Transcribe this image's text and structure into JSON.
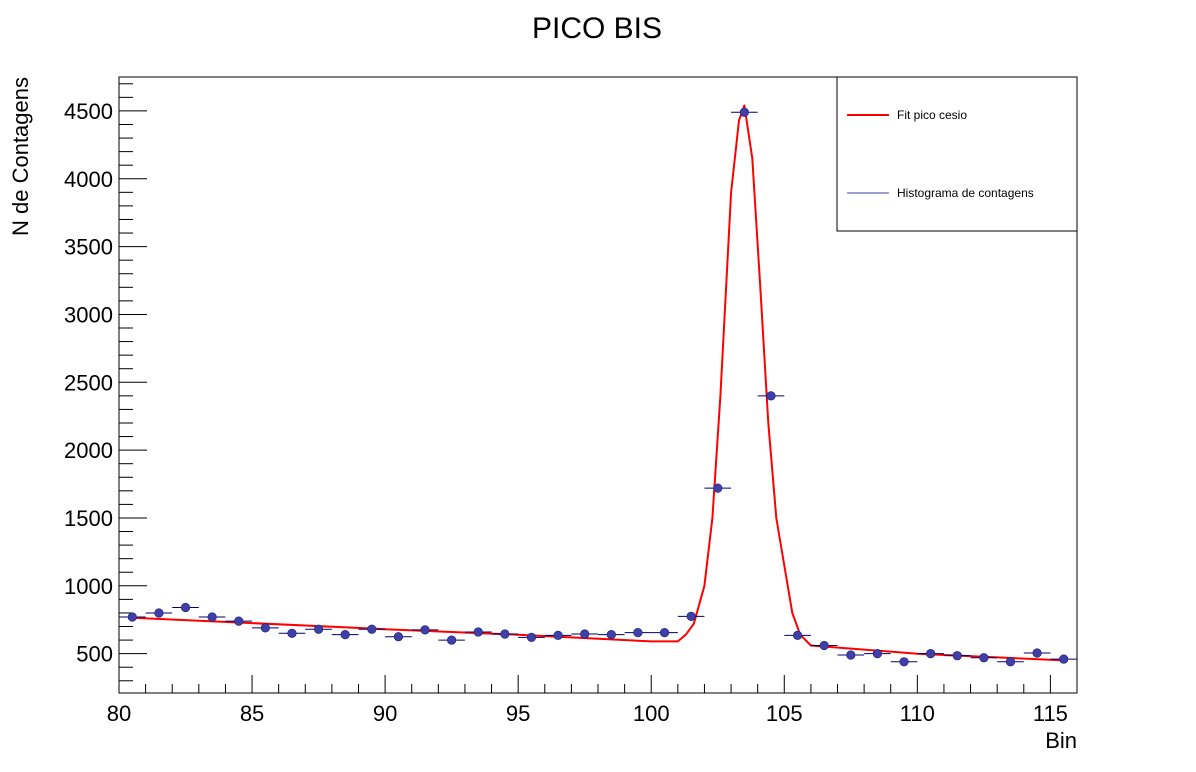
{
  "chart_data": {
    "type": "scatter",
    "title": "PICO BIS",
    "xlabel": "Bin",
    "ylabel": "N de Contagens",
    "xlim": [
      80,
      116
    ],
    "ylim": [
      210,
      4750
    ],
    "x_ticks": [
      80,
      85,
      90,
      95,
      100,
      105,
      110,
      115
    ],
    "y_ticks": [
      500,
      1000,
      1500,
      2000,
      2500,
      3000,
      3500,
      4000,
      4500
    ],
    "grid": false,
    "legend_position": "top-right",
    "series": [
      {
        "name": "Histograma de contagens",
        "kind": "histogram-points",
        "color": "#3f3fa8",
        "bin_halfwidth": 0.5,
        "x": [
          80.5,
          81.5,
          82.5,
          83.5,
          84.5,
          85.5,
          86.5,
          87.5,
          88.5,
          89.5,
          90.5,
          91.5,
          92.5,
          93.5,
          94.5,
          95.5,
          96.5,
          97.5,
          98.5,
          99.5,
          100.5,
          101.5,
          102.5,
          103.5,
          104.5,
          105.5,
          106.5,
          107.5,
          108.5,
          109.5,
          110.5,
          111.5,
          112.5,
          113.5,
          114.5,
          115.5
        ],
        "y": [
          770,
          800,
          840,
          770,
          740,
          690,
          650,
          680,
          640,
          680,
          625,
          675,
          600,
          660,
          645,
          620,
          635,
          645,
          640,
          655,
          655,
          775,
          1720,
          4490,
          2400,
          635,
          560,
          490,
          500,
          440,
          500,
          485,
          470,
          440,
          505,
          460
        ]
      },
      {
        "name": "Fit pico cesio",
        "kind": "line",
        "color": "#ff0000",
        "x": [
          80.5,
          85,
          90,
          95,
          100,
          101,
          101.3,
          101.6,
          102,
          102.3,
          102.6,
          103,
          103.3,
          103.5,
          103.8,
          104.1,
          104.4,
          104.7,
          105,
          105.3,
          105.6,
          106,
          110,
          115.5
        ],
        "y": [
          765,
          725,
          680,
          640,
          590,
          590,
          640,
          720,
          1000,
          1500,
          2400,
          3900,
          4430,
          4540,
          4150,
          3200,
          2200,
          1500,
          1150,
          800,
          640,
          560,
          500,
          450
        ]
      }
    ]
  }
}
